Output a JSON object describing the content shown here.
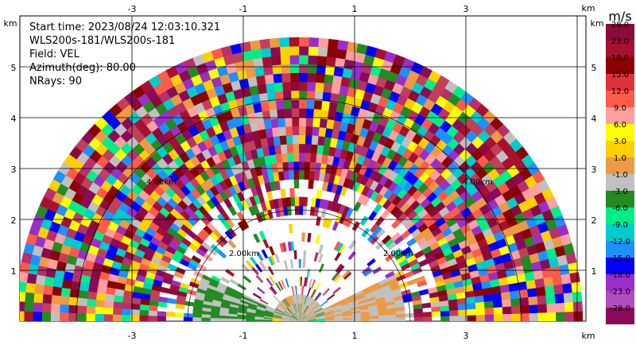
{
  "info": {
    "start_time": "Start time: 2023/08/24 12:03:10.321",
    "instrument": "WLS200s-181/WLS200s-181",
    "field": "Field: VEL",
    "azimuth": "Azimuth(deg): 80.00",
    "nrays": "NRays: 90"
  },
  "axes": {
    "x_ticks": [
      "-3",
      "-1",
      "1",
      "3"
    ],
    "y_ticks": [
      "1",
      "2",
      "3",
      "4",
      "5"
    ],
    "unit": "km"
  },
  "range_rings": [
    "2.00km",
    "4.00km"
  ],
  "colorbar": {
    "unit": "m/s",
    "labels": [
      "28.0",
      "23.0",
      "18.0",
      "15.0",
      "12.0",
      "9.0",
      "6.0",
      "3.0",
      "1.0",
      "-1.0",
      "-3.0",
      "-6.0",
      "-9.0",
      "-12.0",
      "-15.0",
      "-18.0",
      "-23.0",
      "-28.0"
    ],
    "colors": [
      "#8b0a3a",
      "#a8102f",
      "#8b0000",
      "#e0303a",
      "#ff5a4a",
      "#ff9f9f",
      "#ffff00",
      "#ffd000",
      "#ee9944",
      "#c0c0c0",
      "#228b22",
      "#00ee88",
      "#00cccc",
      "#1e90ff",
      "#0000ff",
      "#9a2fc8",
      "#b24dbf",
      "#8b0a5a"
    ]
  }
}
